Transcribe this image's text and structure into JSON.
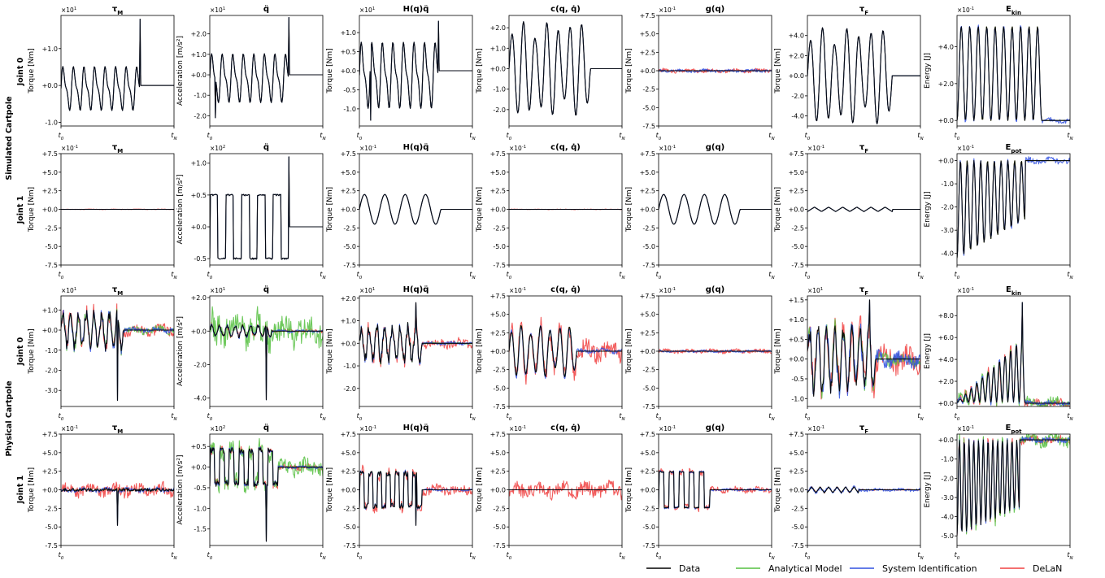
{
  "colors": {
    "Data": "#000000",
    "Analytical Model": "#55c040",
    "System Identification": "#3050e0",
    "DeLaN": "#f04040"
  },
  "legend": [
    "Data",
    "Analytical Model",
    "System Identification",
    "DeLaN"
  ],
  "system_labels": [
    "Simulated Cartpole",
    "Physical Cartpole"
  ],
  "joint_labels": [
    "Joint 0",
    "Joint 1",
    "Joint 0",
    "Joint 1"
  ],
  "x_tick_labels": [
    "t_0",
    "t_N"
  ],
  "chart_data": [
    {
      "type": "line",
      "system": "Simulated Cartpole",
      "joint": "Joint 0",
      "title": "τ_M",
      "ylabel": "Torque [Nm]",
      "multiplier": "×10^1",
      "ylim": [
        -1.1,
        1.9
      ],
      "yticks": [
        "-1.0",
        "+0.0",
        "+1.0"
      ],
      "ytick_values": [
        -1,
        0,
        1
      ],
      "profile": "tauM_sim0",
      "scale": 0.55,
      "flat_after": 0.7,
      "spikes": [
        [
          0.7,
          1.8
        ]
      ],
      "errors": {
        "Analytical Model": 0,
        "System Identification": 0,
        "DeLaN": 0
      }
    },
    {
      "type": "line",
      "system": "Simulated Cartpole",
      "joint": "Joint 0",
      "title": "q̈",
      "ylabel": "Acceleration [m/s²]",
      "multiplier": "×10^1",
      "ylim": [
        -2.5,
        2.9
      ],
      "yticks": [
        "-2.0",
        "-1.0",
        "+0.0",
        "+1.0",
        "+2.0"
      ],
      "ytick_values": [
        -2,
        -1,
        0,
        1,
        2
      ],
      "profile": "tauM_sim0",
      "scale": 1.1,
      "flat_after": 0.7,
      "spikes": [
        [
          0.7,
          2.8
        ],
        [
          0.05,
          -2.1
        ]
      ],
      "errors": {
        "Analytical Model": 0,
        "System Identification": 0,
        "DeLaN": 0
      }
    },
    {
      "type": "line",
      "system": "Simulated Cartpole",
      "joint": "Joint 0",
      "title": "H(q)q̈",
      "ylabel": "Torque [Nm]",
      "multiplier": "×10^1",
      "ylim": [
        -1.45,
        1.45
      ],
      "yticks": [
        "-1.0",
        "-0.5",
        "+0.0",
        "+0.5",
        "+1.0"
      ],
      "ytick_values": [
        -1,
        -0.5,
        0,
        0.5,
        1
      ],
      "profile": "tauM_sim0",
      "scale": 0.8,
      "flat_after": 0.7,
      "spikes": [
        [
          0.7,
          1.3
        ],
        [
          0.1,
          -1.3
        ]
      ],
      "errors": {
        "Analytical Model": 0,
        "System Identification": 0,
        "DeLaN": 0
      }
    },
    {
      "type": "line",
      "system": "Simulated Cartpole",
      "joint": "Joint 0",
      "title": "c(q, q̇)",
      "ylabel": "Torque [Nm]",
      "multiplier": "",
      "ylim": [
        -2.8,
        2.6
      ],
      "yticks": [
        "-2.0",
        "-1.0",
        "+0.0",
        "+1.0",
        "+2.0"
      ],
      "ytick_values": [
        -2,
        -1,
        0,
        1,
        2
      ],
      "profile": "osc_sym",
      "scale": 2.3,
      "flat_after": 0.72,
      "spikes": [],
      "errors": {
        "Analytical Model": 0,
        "System Identification": 0,
        "DeLaN": 0
      }
    },
    {
      "type": "line",
      "system": "Simulated Cartpole",
      "joint": "Joint 0",
      "title": "g(q)",
      "ylabel": "Torque [Nm]",
      "multiplier": "×10^-1",
      "ylim": [
        -7.5,
        7.5
      ],
      "yticks": [
        "-7.5",
        "-5.0",
        "-2.5",
        "+0.0",
        "+2.5",
        "+5.0",
        "+7.5"
      ],
      "ytick_values": [
        -7.5,
        -5,
        -2.5,
        0,
        2.5,
        5,
        7.5
      ],
      "profile": "flat",
      "scale": 0,
      "flat_after": 1,
      "spikes": [],
      "errors": {
        "Analytical Model": 0,
        "System Identification": 0.3,
        "DeLaN": 0.4
      }
    },
    {
      "type": "line",
      "system": "Simulated Cartpole",
      "joint": "Joint 0",
      "title": "τ_F",
      "ylabel": "Torque [Nm]",
      "multiplier": "",
      "ylim": [
        -5,
        6
      ],
      "yticks": [
        "-4.0",
        "-2.0",
        "+0.0",
        "+2.0",
        "+4.0"
      ],
      "ytick_values": [
        -4,
        -2,
        0,
        2,
        4
      ],
      "profile": "osc_sym",
      "scale": 4.8,
      "flat_after": 0.75,
      "spikes": [],
      "errors": {
        "Analytical Model": 0,
        "System Identification": 0,
        "DeLaN": 0
      }
    },
    {
      "type": "line",
      "system": "Simulated Cartpole",
      "joint": "Joint 0",
      "title": "E_kin",
      "ylabel": "Energy [J]",
      "multiplier": "×10^-1",
      "ylim": [
        -0.3,
        5.7
      ],
      "yticks": [
        "+0.0",
        "+2.0",
        "+4.0"
      ],
      "ytick_values": [
        0,
        2,
        4
      ],
      "profile": "ekin",
      "scale": 5.1,
      "flat_after": 0.75,
      "spikes": [],
      "errors": {
        "Analytical Model": 0,
        "System Identification": 0.2,
        "DeLaN": 0
      }
    },
    {
      "type": "line",
      "system": "Simulated Cartpole",
      "joint": "Joint 1",
      "title": "τ_M",
      "ylabel": "Torque [Nm]",
      "multiplier": "×10^-1",
      "ylim": [
        -7.5,
        7.5
      ],
      "yticks": [
        "-7.5",
        "-5.0",
        "-2.5",
        "+0.0",
        "+2.5",
        "+5.0",
        "+7.5"
      ],
      "ytick_values": [
        -7.5,
        -5,
        -2.5,
        0,
        2.5,
        5,
        7.5
      ],
      "profile": "flat",
      "scale": 0,
      "flat_after": 1,
      "spikes": [],
      "errors": {
        "Analytical Model": 0,
        "System Identification": 0,
        "DeLaN": 0.05
      }
    },
    {
      "type": "line",
      "system": "Simulated Cartpole",
      "joint": "Joint 1",
      "title": "q̈",
      "ylabel": "Acceleration [m/s²]",
      "multiplier": "×10^2",
      "ylim": [
        -0.6,
        1.15
      ],
      "yticks": [
        "-0.5",
        "+0.0",
        "+0.5",
        "+1.0"
      ],
      "ytick_values": [
        -0.5,
        0,
        0.5,
        1
      ],
      "profile": "square",
      "scale": 0.5,
      "flat_after": 0.7,
      "spikes": [
        [
          0.7,
          1.1
        ]
      ],
      "errors": {
        "Analytical Model": 0,
        "System Identification": 0,
        "DeLaN": 0
      }
    },
    {
      "type": "line",
      "system": "Simulated Cartpole",
      "joint": "Joint 1",
      "title": "H(q)q̈",
      "ylabel": "Torque [Nm]",
      "multiplier": "×10^-1",
      "ylim": [
        -7.5,
        7.5
      ],
      "yticks": [
        "-7.5",
        "-5.0",
        "-2.5",
        "+0.0",
        "+2.5",
        "+5.0",
        "+7.5"
      ],
      "ytick_values": [
        -7.5,
        -5,
        -2.5,
        0,
        2.5,
        5,
        7.5
      ],
      "profile": "bumps",
      "scale": 2,
      "flat_after": 0.72,
      "spikes": [],
      "errors": {
        "Analytical Model": 0,
        "System Identification": 0,
        "DeLaN": 0
      }
    },
    {
      "type": "line",
      "system": "Simulated Cartpole",
      "joint": "Joint 1",
      "title": "c(q, q̇)",
      "ylabel": "Torque [Nm]",
      "multiplier": "×10^-1",
      "ylim": [
        -7.5,
        7.5
      ],
      "yticks": [
        "-7.5",
        "-5.0",
        "-2.5",
        "+0.0",
        "+2.5",
        "+5.0",
        "+7.5"
      ],
      "ytick_values": [
        -7.5,
        -5,
        -2.5,
        0,
        2.5,
        5,
        7.5
      ],
      "profile": "flat",
      "scale": 0,
      "flat_after": 1,
      "spikes": [],
      "errors": {
        "Analytical Model": 0,
        "System Identification": 0,
        "DeLaN": 0.05
      }
    },
    {
      "type": "line",
      "system": "Simulated Cartpole",
      "joint": "Joint 1",
      "title": "g(q)",
      "ylabel": "Torque [Nm]",
      "multiplier": "×10^-1",
      "ylim": [
        -7.5,
        7.5
      ],
      "yticks": [
        "-7.5",
        "-5.0",
        "-2.5",
        "+0.0",
        "+2.5",
        "+5.0",
        "+7.5"
      ],
      "ytick_values": [
        -7.5,
        -5,
        -2.5,
        0,
        2.5,
        5,
        7.5
      ],
      "profile": "bumps",
      "scale": 2,
      "flat_after": 0.72,
      "spikes": [],
      "errors": {
        "Analytical Model": 0,
        "System Identification": 0,
        "DeLaN": 0
      }
    },
    {
      "type": "line",
      "system": "Simulated Cartpole",
      "joint": "Joint 1",
      "title": "τ_F",
      "ylabel": "Torque [Nm]",
      "multiplier": "×10^-1",
      "ylim": [
        -7.5,
        7.5
      ],
      "yticks": [
        "-7.5",
        "-5.0",
        "-2.5",
        "+0.0",
        "+2.5",
        "+5.0",
        "+7.5"
      ],
      "ytick_values": [
        -7.5,
        -5,
        -2.5,
        0,
        2.5,
        5,
        7.5
      ],
      "profile": "zigzag",
      "scale": 0.3,
      "flat_after": 0.75,
      "spikes": [],
      "errors": {
        "Analytical Model": 0,
        "System Identification": 0,
        "DeLaN": 0
      }
    },
    {
      "type": "line",
      "system": "Simulated Cartpole",
      "joint": "Joint 1",
      "title": "E_pot",
      "ylabel": "Energy [J]",
      "multiplier": "×10^-1",
      "ylim": [
        -4.5,
        0.3
      ],
      "yticks": [
        "-4.0",
        "-3.0",
        "-2.0",
        "-1.0",
        "+0.0"
      ],
      "ytick_values": [
        -4,
        -3,
        -2,
        -1,
        0
      ],
      "profile": "epot",
      "scale": 4.2,
      "flat_after": 0.6,
      "spikes": [],
      "errors": {
        "Analytical Model": 0,
        "System Identification": 0.2,
        "DeLaN": 0
      }
    },
    {
      "type": "line",
      "system": "Physical Cartpole",
      "joint": "Joint 0",
      "title": "τ_M",
      "ylabel": "Torque [Nm]",
      "multiplier": "×10^1",
      "ylim": [
        -3.8,
        1.7
      ],
      "yticks": [
        "-3.0",
        "-2.0",
        "-1.0",
        "+0.0",
        "+1.0"
      ],
      "ytick_values": [
        -3,
        -2,
        -1,
        0,
        1
      ],
      "profile": "noisy_osc",
      "scale": 1.0,
      "flat_after": 0.55,
      "spikes": [
        [
          0.5,
          -3.5
        ]
      ],
      "errors": {
        "Analytical Model": 0.3,
        "System Identification": 0.2,
        "DeLaN": 0.4
      }
    },
    {
      "type": "line",
      "system": "Physical Cartpole",
      "joint": "Joint 0",
      "title": "q̈",
      "ylabel": "Acceleration [m/s²]",
      "multiplier": "×10^1",
      "ylim": [
        -4.5,
        2.1
      ],
      "yticks": [
        "-4.0",
        "-2.0",
        "+0.0",
        "+2.0"
      ],
      "ytick_values": [
        -4,
        -2,
        0,
        2
      ],
      "profile": "noisy_osc",
      "scale": 0.4,
      "flat_after": 0.55,
      "spikes": [
        [
          0.5,
          -4.1
        ]
      ],
      "errors": {
        "Analytical Model": 1.4,
        "System Identification": 0.1,
        "DeLaN": 0.15
      }
    },
    {
      "type": "line",
      "system": "Physical Cartpole",
      "joint": "Joint 0",
      "title": "H(q)q̈",
      "ylabel": "Torque [Nm]",
      "multiplier": "×10^1",
      "ylim": [
        -2.8,
        2.1
      ],
      "yticks": [
        "-2.0",
        "-1.0",
        "+0.0",
        "+1.0",
        "+2.0"
      ],
      "ytick_values": [
        -2,
        -1,
        0,
        1,
        2
      ],
      "profile": "noisy_osc",
      "scale": 0.9,
      "flat_after": 0.55,
      "spikes": [
        [
          0.5,
          -2.6
        ],
        [
          0.5,
          1.8
        ]
      ],
      "errors": {
        "Analytical Model": 0.05,
        "System Identification": 0.1,
        "DeLaN": 0.3
      }
    },
    {
      "type": "line",
      "system": "Physical Cartpole",
      "joint": "Joint 0",
      "title": "c(q, q̇)",
      "ylabel": "Torque [Nm]",
      "multiplier": "×10^-1",
      "ylim": [
        -7.5,
        7.5
      ],
      "yticks": [
        "-7.5",
        "-5.0",
        "-2.5",
        "+0.0",
        "+2.5",
        "+5.0",
        "+7.5"
      ],
      "ytick_values": [
        -7.5,
        -5,
        -2.5,
        0,
        2.5,
        5,
        7.5
      ],
      "profile": "osc_sym",
      "scale": 3.5,
      "flat_after": 0.6,
      "spikes": [],
      "errors": {
        "Analytical Model": 0,
        "System Identification": 0.5,
        "DeLaN": 2
      }
    },
    {
      "type": "line",
      "system": "Physical Cartpole",
      "joint": "Joint 0",
      "title": "g(q)",
      "ylabel": "Torque [Nm]",
      "multiplier": "×10^-1",
      "ylim": [
        -7.5,
        7.5
      ],
      "yticks": [
        "-7.5",
        "-5.0",
        "-2.5",
        "+0.0",
        "+2.5",
        "+5.0",
        "+7.5"
      ],
      "ytick_values": [
        -7.5,
        -5,
        -2.5,
        0,
        2.5,
        5,
        7.5
      ],
      "profile": "flat",
      "scale": 0,
      "flat_after": 1,
      "spikes": [],
      "errors": {
        "Analytical Model": 0,
        "System Identification": 0.2,
        "DeLaN": 0.4
      }
    },
    {
      "type": "line",
      "system": "Physical Cartpole",
      "joint": "Joint 0",
      "title": "τ_F",
      "ylabel": "Torque [Nm]",
      "multiplier": "×10^1",
      "ylim": [
        -1.2,
        1.6
      ],
      "yticks": [
        "-1.0",
        "-0.5",
        "+0.0",
        "+0.5",
        "+1.0",
        "+1.5"
      ],
      "ytick_values": [
        -1,
        -0.5,
        0,
        0.5,
        1,
        1.5
      ],
      "profile": "noisy_osc",
      "scale": 0.9,
      "flat_after": 0.6,
      "spikes": [
        [
          0.55,
          1.5
        ]
      ],
      "errors": {
        "Analytical Model": 0.25,
        "System Identification": 0.3,
        "DeLaN": 0.5
      }
    },
    {
      "type": "line",
      "system": "Physical Cartpole",
      "joint": "Joint 0",
      "title": "E_kin",
      "ylabel": "Energy [J]",
      "multiplier": "×10^-1",
      "ylim": [
        -0.3,
        9.8
      ],
      "yticks": [
        "+0.0",
        "+2.0",
        "+4.0",
        "+6.0",
        "+8.0"
      ],
      "ytick_values": [
        0,
        2,
        4,
        6,
        8
      ],
      "profile": "ekin_grow",
      "scale": 6,
      "flat_after": 0.6,
      "spikes": [
        [
          0.58,
          9.2
        ]
      ],
      "errors": {
        "Analytical Model": 0.8,
        "System Identification": 0.3,
        "DeLaN": 0.6
      }
    },
    {
      "type": "line",
      "system": "Physical Cartpole",
      "joint": "Joint 1",
      "title": "τ_M",
      "ylabel": "Torque [Nm]",
      "multiplier": "×10^-1",
      "ylim": [
        -7.5,
        7.5
      ],
      "yticks": [
        "-7.5",
        "-5.0",
        "-2.5",
        "+0.0",
        "+2.5",
        "+5.0",
        "+7.5"
      ],
      "ytick_values": [
        -7.5,
        -5,
        -2.5,
        0,
        2.5,
        5,
        7.5
      ],
      "profile": "noisy_small",
      "scale": 0.4,
      "flat_after": 1,
      "spikes": [
        [
          0.5,
          -4.8
        ]
      ],
      "errors": {
        "Analytical Model": 0,
        "System Identification": 0.3,
        "DeLaN": 1.2
      }
    },
    {
      "type": "line",
      "system": "Physical Cartpole",
      "joint": "Joint 1",
      "title": "q̈",
      "ylabel": "Acceleration [m/s²]",
      "multiplier": "×10^2",
      "ylim": [
        -1.9,
        0.8
      ],
      "yticks": [
        "-1.5",
        "-1.0",
        "-0.5",
        "+0.0",
        "+0.5"
      ],
      "ytick_values": [
        -1.5,
        -1,
        -0.5,
        0,
        0.5
      ],
      "profile": "square_noisy",
      "scale": 0.45,
      "flat_after": 0.6,
      "spikes": [
        [
          0.5,
          -1.8
        ]
      ],
      "errors": {
        "Analytical Model": 0.3,
        "System Identification": 0.05,
        "DeLaN": 0.1
      }
    },
    {
      "type": "line",
      "system": "Physical Cartpole",
      "joint": "Joint 1",
      "title": "H(q)q̈",
      "ylabel": "Torque [Nm]",
      "multiplier": "×10^-1",
      "ylim": [
        -7.5,
        7.5
      ],
      "yticks": [
        "-7.5",
        "-5.0",
        "-2.5",
        "+0.0",
        "+2.5",
        "+5.0",
        "+7.5"
      ],
      "ytick_values": [
        -7.5,
        -5,
        -2.5,
        0,
        2.5,
        5,
        7.5
      ],
      "profile": "square_noisy",
      "scale": 2.4,
      "flat_after": 0.55,
      "spikes": [
        [
          0.5,
          -4.8
        ]
      ],
      "errors": {
        "Analytical Model": 0,
        "System Identification": 0.2,
        "DeLaN": 1.0
      }
    },
    {
      "type": "line",
      "system": "Physical Cartpole",
      "joint": "Joint 1",
      "title": "c(q, q̇)",
      "ylabel": "Torque [Nm]",
      "multiplier": "×10^-1",
      "ylim": [
        -7.5,
        7.5
      ],
      "yticks": [
        "-7.5",
        "-5.0",
        "-2.5",
        "+0.0",
        "+2.5",
        "+5.0",
        "+7.5"
      ],
      "ytick_values": [
        -7.5,
        -5,
        -2.5,
        0,
        2.5,
        5,
        7.5
      ],
      "profile": "flat",
      "scale": 0,
      "flat_after": 1,
      "spikes": [],
      "errors": {
        "Analytical Model": 0,
        "System Identification": 0,
        "DeLaN": 1.6
      }
    },
    {
      "type": "line",
      "system": "Physical Cartpole",
      "joint": "Joint 1",
      "title": "g(q)",
      "ylabel": "Torque [Nm]",
      "multiplier": "×10^-1",
      "ylim": [
        -7.5,
        7.5
      ],
      "yticks": [
        "-7.5",
        "-5.0",
        "-2.5",
        "+0.0",
        "+2.5",
        "+5.0",
        "+7.5"
      ],
      "ytick_values": [
        -7.5,
        -5,
        -2.5,
        0,
        2.5,
        5,
        7.5
      ],
      "profile": "square",
      "scale": 2.4,
      "flat_after": 0.45,
      "spikes": [],
      "errors": {
        "Analytical Model": 0,
        "System Identification": 0.2,
        "DeLaN": 0.6
      }
    },
    {
      "type": "line",
      "system": "Physical Cartpole",
      "joint": "Joint 1",
      "title": "τ_F",
      "ylabel": "Torque [Nm]",
      "multiplier": "×10^-1",
      "ylim": [
        -7.5,
        7.5
      ],
      "yticks": [
        "-7.5",
        "-5.0",
        "-2.5",
        "+0.0",
        "+2.5",
        "+5.0",
        "+7.5"
      ],
      "ytick_values": [
        -7.5,
        -5,
        -2.5,
        0,
        2.5,
        5,
        7.5
      ],
      "profile": "zigzag",
      "scale": 0.4,
      "flat_after": 0.45,
      "spikes": [],
      "errors": {
        "Analytical Model": 0,
        "System Identification": 0.3,
        "DeLaN": 0.1
      }
    },
    {
      "type": "line",
      "system": "Physical Cartpole",
      "joint": "Joint 1",
      "title": "E_pot",
      "ylabel": "Energy [J]",
      "multiplier": "×10^-1",
      "ylim": [
        -5.5,
        0.3
      ],
      "yticks": [
        "-5.0",
        "-4.0",
        "-3.0",
        "-2.0",
        "-1.0",
        "+0.0"
      ],
      "ytick_values": [
        -5,
        -4,
        -3,
        -2,
        -1,
        0
      ],
      "profile": "epot_phys",
      "scale": 5,
      "flat_after": 0.55,
      "spikes": [],
      "errors": {
        "Analytical Model": 0.5,
        "System Identification": 0.2,
        "DeLaN": 0.3
      }
    }
  ]
}
